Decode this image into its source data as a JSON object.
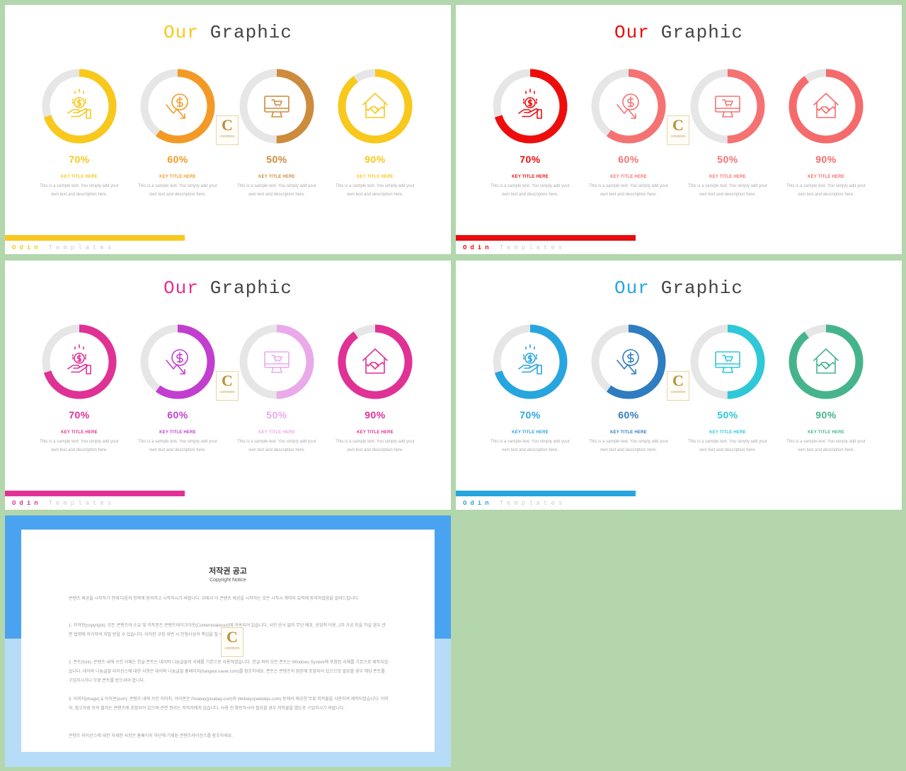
{
  "slides": [
    {
      "title_accent": "Our",
      "title_rest": "Graphic",
      "accent": "#f8c81c",
      "brand": [
        "Odin",
        "Templates"
      ],
      "items": [
        {
          "icon": "hand-coin-icon",
          "percent": "70%",
          "value": 70,
          "color": "#f8c81c",
          "key_title": "KEY TITLE HERE",
          "desc1": "This is a sample text. You simply add your",
          "desc2": "own text and description here."
        },
        {
          "icon": "dollar-down-arrow-icon",
          "percent": "60%",
          "value": 60,
          "color": "#f39a26",
          "key_title": "KEY TITLE HERE",
          "desc1": "This is a sample text. You simply add your",
          "desc2": "own text and description here."
        },
        {
          "icon": "monitor-cart-icon",
          "percent": "50%",
          "value": 50,
          "color": "#cd8b3c",
          "key_title": "KEY TITLE HERE",
          "desc1": "This is a sample text. You simply add your",
          "desc2": "own text and description here."
        },
        {
          "icon": "house-handshake-icon",
          "percent": "90%",
          "value": 90,
          "color": "#f8c81c",
          "key_title": "KEY TITLE HERE",
          "desc1": "This is a sample text. You simply add your",
          "desc2": "own text and description here."
        }
      ]
    },
    {
      "title_accent": "Our",
      "title_rest": "Graphic",
      "accent": "#e80c0c",
      "brand": [
        "Odin",
        "Templates"
      ],
      "items": [
        {
          "icon": "hand-coin-icon",
          "percent": "70%",
          "value": 70,
          "color": "#ee0d0d",
          "key_title": "KEY TITLE HERE",
          "desc1": "This is a sample text. You simply add your",
          "desc2": "own text and description here."
        },
        {
          "icon": "dollar-down-arrow-icon",
          "percent": "60%",
          "value": 60,
          "color": "#f57272",
          "key_title": "KEY TITLE HERE",
          "desc1": "This is a sample text. You simply add your",
          "desc2": "own text and description here."
        },
        {
          "icon": "monitor-cart-icon",
          "percent": "50%",
          "value": 50,
          "color": "#f57272",
          "key_title": "KEY TITLE HERE",
          "desc1": "This is a sample text. You simply add your",
          "desc2": "own text and description here."
        },
        {
          "icon": "house-handshake-icon",
          "percent": "90%",
          "value": 90,
          "color": "#f56b6b",
          "key_title": "KEY TITLE HERE",
          "desc1": "This is a sample text. You simply add your",
          "desc2": "own text and description here."
        }
      ]
    },
    {
      "title_accent": "Our",
      "title_rest": "Graphic",
      "accent": "#e03195",
      "brand": [
        "Odin",
        "Templates"
      ],
      "items": [
        {
          "icon": "hand-coin-icon",
          "percent": "70%",
          "value": 70,
          "color": "#e03195",
          "key_title": "KEY TITLE HERE",
          "desc1": "This is a sample text. You simply add your",
          "desc2": "own text and description here."
        },
        {
          "icon": "dollar-down-arrow-icon",
          "percent": "60%",
          "value": 60,
          "color": "#c23ecf",
          "key_title": "KEY TITLE HERE",
          "desc1": "This is a sample text. You simply add your",
          "desc2": "own text and description here."
        },
        {
          "icon": "monitor-cart-icon",
          "percent": "50%",
          "value": 50,
          "color": "#eaaaea",
          "key_title": "KEY TITLE HERE",
          "desc1": "This is a sample text. You simply add your",
          "desc2": "own text and description here."
        },
        {
          "icon": "house-handshake-icon",
          "percent": "90%",
          "value": 90,
          "color": "#e03195",
          "key_title": "KEY TITLE HERE",
          "desc1": "This is a sample text. You simply add your",
          "desc2": "own text and description here."
        }
      ]
    },
    {
      "title_accent": "Our",
      "title_rest": "Graphic",
      "accent": "#27a5de",
      "brand": [
        "Odin",
        "Templates"
      ],
      "items": [
        {
          "icon": "hand-coin-icon",
          "percent": "70%",
          "value": 70,
          "color": "#27a5de",
          "key_title": "KEY TITLE HERE",
          "desc1": "This is a sample text. You simply add your",
          "desc2": "own text and description here."
        },
        {
          "icon": "dollar-down-arrow-icon",
          "percent": "60%",
          "value": 60,
          "color": "#2f7cc0",
          "key_title": "KEY TITLE HERE",
          "desc1": "This is a sample text. You simply add your",
          "desc2": "own text and description here."
        },
        {
          "icon": "monitor-cart-icon",
          "percent": "50%",
          "value": 50,
          "color": "#2ec8d8",
          "key_title": "KEY TITLE HERE",
          "desc1": "This is a sample text. You simply add your",
          "desc2": "own text and description here."
        },
        {
          "icon": "house-handshake-icon",
          "percent": "90%",
          "value": 90,
          "color": "#45b48c",
          "key_title": "KEY TITLE HERE",
          "desc1": "This is a sample text. You simply add your",
          "desc2": "own text and description here."
        }
      ]
    }
  ],
  "stamp": {
    "letter": "C",
    "text": "CONTENTS"
  },
  "notice": {
    "title": "저작권 공고",
    "subtitle": "Copyright Notice",
    "paragraphs": [
      "콘텐츠 제공을 시작하기 전에 다음의 항목에 동의하고 시작하시기 바랍니다. 위에서 이 콘텐츠 제공을 시작하는 것은 시작시 계약의 효력에 동의하였음을 알려드립니다.",
      "1. 저작권(copyright): 모든 콘텐츠의 소유 및 저작권은 콘텐츠테이크아웃(Contentstakeout)에 귀속되어 있습니다. 사전 승낙 없이 무단 배포, 상업적 이용, 2차 가공 등을 하실 경우 관련 법령에 의거하여 처벌 받을 수 있습니다. 이러한 규정 위반 시 민형사상의 책임을 질 수 있습니다.",
      "2. 폰트(font): 콘텐츠 내에 쓰인 서체는 한글 폰트는 네이버 나눔글꼴의 서체를 기본으로 사용하였습니다. 한글 외의 모든 폰트는 Windows System에 포함된 서체를 기본으로 제작되었습니다. 네이버 나눔글꼴 라이선스에 대한 사항은 네이버 나눔글꼴 홈페이지(hangeul.naver.com)를 참조하세요. 폰트는 콘텐츠의 원본에 포함되어 있으므로 필요할 경우 해당 폰트를 구입하시거나 무료 폰트를 받으셔야 합니다.",
      "3. 이미지(image) & 아이콘(icon): 콘텐츠 내에 쓰인 이미지, 아이콘은 Pixabay(pixabay.com)와 Webalys(webalys.com) 등에서 제공한 무료 저작물을 사용하여 제작되었습니다. 이미지, 참고자료 등의 출처는 콘텐츠에 포함되어 있으며 관련 권리는 저작자에게 있습니다. 사용 전 확인하시어 필요할 경우 저작물을 별도로 구입하시기 바랍니다.",
      "콘텐츠 라이선스에 대한 자세한 사항은 홈페이지 하단에 기재된 콘텐츠라이선스를 참조하세요."
    ]
  },
  "colors": {
    "background": "#b3d6ad",
    "ring_track": "#e6e6e6",
    "notice_dark": "#4aa3f0",
    "notice_light": "#b6dcf8"
  }
}
